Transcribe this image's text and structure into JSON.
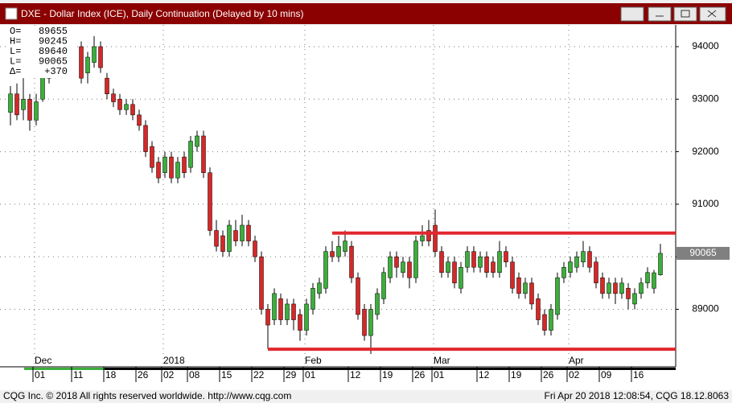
{
  "window": {
    "title": "DXE - Dollar Index (ICE), Daily Continuation (Delayed by 10 mins)"
  },
  "chart_data": {
    "type": "candlestick",
    "categories": [
      null,
      null,
      null,
      null,
      "01",
      null,
      null,
      null,
      null,
      null,
      "11",
      null,
      null,
      null,
      null,
      "18",
      null,
      null,
      null,
      null,
      "26",
      null,
      null,
      null,
      "02",
      null,
      null,
      null,
      "08",
      null,
      null,
      null,
      null,
      "15",
      null,
      null,
      null,
      null,
      "22",
      null,
      null,
      null,
      null,
      "29",
      null,
      null,
      "01",
      null,
      null,
      null,
      null,
      null,
      null,
      "12",
      null,
      null,
      null,
      null,
      "19",
      null,
      null,
      null,
      null,
      "26",
      null,
      null,
      "01",
      null,
      null,
      null,
      null,
      null,
      null,
      "12",
      null,
      null,
      null,
      null,
      "19",
      null,
      null,
      null,
      null,
      "26",
      null,
      null,
      null,
      "02",
      null,
      null,
      null,
      null,
      "09",
      null,
      null,
      null,
      null,
      "16",
      null,
      null,
      null,
      null
    ],
    "months": [
      null,
      null,
      null,
      null,
      "Dec",
      null,
      null,
      null,
      null,
      null,
      null,
      null,
      null,
      null,
      null,
      null,
      null,
      null,
      null,
      null,
      null,
      null,
      null,
      null,
      "2018",
      null,
      null,
      null,
      null,
      null,
      null,
      null,
      null,
      null,
      null,
      null,
      null,
      null,
      null,
      null,
      null,
      null,
      null,
      null,
      null,
      null,
      "Feb",
      null,
      null,
      null,
      null,
      null,
      null,
      null,
      null,
      null,
      null,
      null,
      null,
      null,
      null,
      null,
      null,
      null,
      null,
      null,
      "Mar",
      null,
      null,
      null,
      null,
      null,
      null,
      null,
      null,
      null,
      null,
      null,
      null,
      null,
      null,
      null,
      null,
      null,
      null,
      null,
      null,
      "Apr",
      null,
      null,
      null,
      null,
      null,
      null,
      null,
      null,
      null,
      null,
      null,
      null,
      null,
      null
    ],
    "open": [
      92750,
      93100,
      92800,
      93000,
      92600,
      93000,
      93400,
      93700,
      93500,
      94000,
      93700,
      94000,
      93500,
      93700,
      94000,
      93400,
      93100,
      93000,
      92800,
      92900,
      92700,
      92500,
      92100,
      91800,
      91600,
      91900,
      91500,
      91900,
      91700,
      92100,
      92300,
      91600,
      90500,
      90400,
      90100,
      90500,
      90300,
      90600,
      90300,
      90000,
      89000,
      88800,
      89200,
      88800,
      89100,
      88900,
      88600,
      89000,
      89300,
      89400,
      90100,
      90000,
      90100,
      90200,
      89600,
      89000,
      88500,
      88900,
      89200,
      89600,
      90000,
      89700,
      89900,
      89600,
      90300,
      90500,
      90600,
      90100,
      89700,
      89900,
      89400,
      89800,
      90100,
      89800,
      90000,
      89900,
      89700,
      90100,
      89900,
      89600,
      89300,
      89500,
      89200,
      88900,
      88600,
      88900,
      89600,
      89700,
      89800,
      89900,
      90100,
      89900,
      89600,
      89300,
      89500,
      89300,
      89400,
      89100,
      89300,
      89500,
      89400,
      89655
    ],
    "high": [
      93250,
      93300,
      93400,
      93100,
      93100,
      93600,
      93800,
      93900,
      94100,
      94200,
      94300,
      94100,
      93900,
      94200,
      94100,
      93500,
      93200,
      93100,
      93000,
      93000,
      92800,
      92600,
      92200,
      91900,
      92000,
      92000,
      91900,
      92000,
      92300,
      92400,
      92400,
      91700,
      90700,
      90500,
      90700,
      90700,
      90800,
      90700,
      90400,
      90100,
      89100,
      89400,
      89300,
      89200,
      89200,
      89000,
      89200,
      89500,
      89600,
      90200,
      90300,
      90400,
      90500,
      90300,
      89700,
      89100,
      89100,
      89400,
      89800,
      90100,
      90100,
      90000,
      90000,
      90400,
      90600,
      90700,
      90900,
      90200,
      90000,
      90000,
      89900,
      90200,
      90200,
      90100,
      90100,
      90000,
      90300,
      90200,
      90000,
      89700,
      89600,
      89600,
      89300,
      89000,
      89100,
      89700,
      89900,
      90000,
      90100,
      90300,
      90200,
      90000,
      89700,
      89600,
      89600,
      89600,
      89500,
      89400,
      89600,
      89800,
      89750,
      90245
    ],
    "low": [
      92500,
      92600,
      92600,
      92400,
      92500,
      92950,
      93300,
      93400,
      93400,
      93700,
      93500,
      93300,
      93300,
      93600,
      93500,
      93000,
      92850,
      92700,
      92700,
      92600,
      92400,
      91900,
      91600,
      91400,
      91500,
      91400,
      91400,
      91500,
      91600,
      92000,
      91500,
      90400,
      90100,
      90000,
      90000,
      90200,
      90200,
      90200,
      89900,
      88900,
      88250,
      88700,
      88700,
      88700,
      88600,
      88400,
      88500,
      88900,
      89200,
      89300,
      89900,
      89900,
      90000,
      89500,
      88800,
      88400,
      88150,
      88800,
      89100,
      89500,
      89600,
      89600,
      89400,
      89500,
      90200,
      90200,
      90000,
      89600,
      89600,
      89400,
      89300,
      89700,
      89700,
      89700,
      89600,
      89600,
      89600,
      89800,
      89300,
      89200,
      89200,
      89000,
      88700,
      88500,
      88500,
      88800,
      89500,
      89600,
      89700,
      89800,
      89700,
      89400,
      89200,
      89200,
      89100,
      89200,
      89000,
      89000,
      89200,
      89400,
      89300,
      89640
    ],
    "close": [
      93100,
      92700,
      93000,
      92600,
      92950,
      93500,
      93700,
      93500,
      94000,
      93800,
      94100,
      93400,
      93800,
      94000,
      93600,
      93100,
      92950,
      92800,
      92900,
      92700,
      92500,
      92000,
      91700,
      91500,
      91900,
      91500,
      91800,
      91600,
      92200,
      92300,
      91600,
      90500,
      90200,
      90100,
      90600,
      90300,
      90600,
      90300,
      90000,
      89000,
      88700,
      89300,
      88800,
      89100,
      88800,
      88600,
      89100,
      89400,
      89500,
      90100,
      90000,
      90200,
      90300,
      89600,
      88900,
      88500,
      89000,
      89300,
      89700,
      90000,
      89800,
      89900,
      89600,
      90300,
      90400,
      90300,
      90100,
      89700,
      89900,
      89500,
      89800,
      90100,
      89800,
      90000,
      89700,
      89700,
      90100,
      89900,
      89400,
      89300,
      89500,
      89100,
      88800,
      88600,
      89000,
      89600,
      89800,
      89900,
      90000,
      90100,
      89800,
      89500,
      89300,
      89500,
      89300,
      89500,
      89200,
      89300,
      89500,
      89700,
      89695,
      90065
    ],
    "up_color": "#3cae3c",
    "down_color": "#d62828",
    "ylim": [
      87920,
      94352
    ],
    "yticks": [
      89000,
      90000,
      91000,
      92000,
      93000,
      94000
    ],
    "grid": true,
    "lines": [
      {
        "value": 90450,
        "from": 50,
        "color": "#e0282e"
      },
      {
        "value": 88240,
        "from": 40,
        "color": "#e0282e"
      }
    ],
    "ohlc_box": {
      "labels": [
        "O=",
        "H=",
        "L=",
        "L=",
        "Δ="
      ],
      "change": {
        "value": 370,
        "label": "+370"
      }
    }
  },
  "footer": {
    "left": "CQG Inc. © 2018 All rights reserved worldwide. http://www.cqg.com",
    "right": "Fri Apr 20 2018 12:08:54, CQG 18.12.8063"
  }
}
